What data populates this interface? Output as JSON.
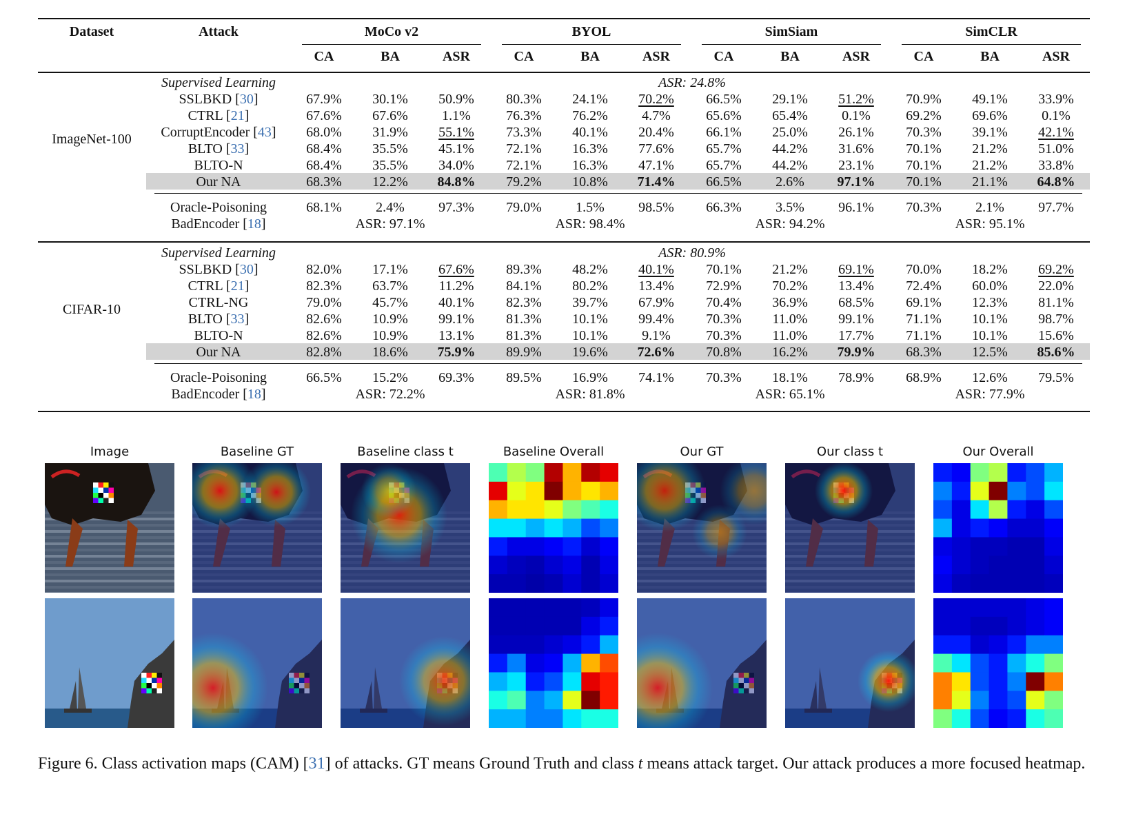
{
  "table": {
    "headers": {
      "dataset": "Dataset",
      "attack": "Attack",
      "groups": [
        "MoCo v2",
        "BYOL",
        "SimSiam",
        "SimCLR"
      ],
      "metrics": [
        "CA",
        "BA",
        "ASR"
      ]
    },
    "sections": [
      {
        "dataset": "ImageNet-100",
        "supervised": {
          "label": "Supervised Learning",
          "text": "ASR: 24.8%"
        },
        "rows": [
          {
            "name": "SSLBKD",
            "ref": "30",
            "cells": [
              "67.9%",
              "30.1%",
              "50.9%",
              "80.3%",
              "24.1%",
              "70.2%",
              "66.5%",
              "29.1%",
              "51.2%",
              "70.9%",
              "49.1%",
              "33.9%"
            ],
            "underline": [
              5,
              8
            ]
          },
          {
            "name": "CTRL",
            "ref": "21",
            "cells": [
              "67.6%",
              "67.6%",
              "1.1%",
              "76.3%",
              "76.2%",
              "4.7%",
              "65.6%",
              "65.4%",
              "0.1%",
              "69.2%",
              "69.6%",
              "0.1%"
            ]
          },
          {
            "name": "CorruptEncoder",
            "ref": "43",
            "cells": [
              "68.0%",
              "31.9%",
              "55.1%",
              "73.3%",
              "40.1%",
              "20.4%",
              "66.1%",
              "25.0%",
              "26.1%",
              "70.3%",
              "39.1%",
              "42.1%"
            ],
            "underline": [
              2,
              11
            ]
          },
          {
            "name": "BLTO",
            "ref": "33",
            "cells": [
              "68.4%",
              "35.5%",
              "45.1%",
              "72.1%",
              "16.3%",
              "77.6%",
              "65.7%",
              "44.2%",
              "31.6%",
              "70.1%",
              "21.2%",
              "51.0%"
            ]
          },
          {
            "name": "BLTO-N",
            "ref": "",
            "cells": [
              "68.4%",
              "35.5%",
              "34.0%",
              "72.1%",
              "16.3%",
              "47.1%",
              "65.7%",
              "44.2%",
              "23.1%",
              "70.1%",
              "21.2%",
              "33.8%"
            ]
          },
          {
            "name": "Our NA",
            "ref": "",
            "highlight": true,
            "cells": [
              "68.3%",
              "12.2%",
              "84.8%",
              "79.2%",
              "10.8%",
              "71.4%",
              "66.5%",
              "2.6%",
              "97.1%",
              "70.1%",
              "21.1%",
              "64.8%"
            ],
            "bold": [
              2,
              5,
              8,
              11
            ]
          }
        ],
        "oracle": {
          "name": "Oracle-Poisoning",
          "cells": [
            "68.1%",
            "2.4%",
            "97.3%",
            "79.0%",
            "1.5%",
            "98.5%",
            "66.3%",
            "3.5%",
            "96.1%",
            "70.3%",
            "2.1%",
            "97.7%"
          ]
        },
        "badencoder": {
          "name": "BadEncoder",
          "ref": "18",
          "asr": [
            "ASR: 97.1%",
            "ASR: 98.4%",
            "ASR: 94.2%",
            "ASR: 95.1%"
          ]
        }
      },
      {
        "dataset": "CIFAR-10",
        "supervised": {
          "label": "Supervised Learning",
          "text": "ASR: 80.9%"
        },
        "rows": [
          {
            "name": "SSLBKD",
            "ref": "30",
            "cells": [
              "82.0%",
              "17.1%",
              "67.6%",
              "89.3%",
              "48.2%",
              "40.1%",
              "70.1%",
              "21.2%",
              "69.1%",
              "70.0%",
              "18.2%",
              "69.2%"
            ],
            "underline": [
              2,
              5,
              8,
              11
            ]
          },
          {
            "name": "CTRL",
            "ref": "21",
            "cells": [
              "82.3%",
              "63.7%",
              "11.2%",
              "84.1%",
              "80.2%",
              "13.4%",
              "72.9%",
              "70.2%",
              "13.4%",
              "72.4%",
              "60.0%",
              "22.0%"
            ]
          },
          {
            "name": "CTRL-NG",
            "ref": "",
            "cells": [
              "79.0%",
              "45.7%",
              "40.1%",
              "82.3%",
              "39.7%",
              "67.9%",
              "70.4%",
              "36.9%",
              "68.5%",
              "69.1%",
              "12.3%",
              "81.1%"
            ]
          },
          {
            "name": "BLTO",
            "ref": "33",
            "cells": [
              "82.6%",
              "10.9%",
              "99.1%",
              "81.3%",
              "10.1%",
              "99.4%",
              "70.3%",
              "11.0%",
              "99.1%",
              "71.1%",
              "10.1%",
              "98.7%"
            ]
          },
          {
            "name": "BLTO-N",
            "ref": "",
            "cells": [
              "82.6%",
              "10.9%",
              "13.1%",
              "81.3%",
              "10.1%",
              "9.1%",
              "70.3%",
              "11.0%",
              "17.7%",
              "71.1%",
              "10.1%",
              "15.6%"
            ]
          },
          {
            "name": "Our NA",
            "ref": "",
            "highlight": true,
            "cells": [
              "82.8%",
              "18.6%",
              "75.9%",
              "89.9%",
              "19.6%",
              "72.6%",
              "70.8%",
              "16.2%",
              "79.9%",
              "68.3%",
              "12.5%",
              "85.6%"
            ],
            "bold": [
              2,
              5,
              8,
              11
            ]
          }
        ],
        "oracle": {
          "name": "Oracle-Poisoning",
          "cells": [
            "66.5%",
            "15.2%",
            "69.3%",
            "89.5%",
            "16.9%",
            "74.1%",
            "70.3%",
            "18.1%",
            "78.9%",
            "68.9%",
            "12.6%",
            "79.5%"
          ]
        },
        "badencoder": {
          "name": "BadEncoder",
          "ref": "18",
          "asr": [
            "ASR: 72.2%",
            "ASR: 81.8%",
            "ASR: 65.1%",
            "ASR: 77.9%"
          ]
        }
      }
    ]
  },
  "figure": {
    "column_titles": [
      "Image",
      "Baseline GT",
      "Baseline class t",
      "Baseline Overall",
      "Our GT",
      "Our class t",
      "Our Overall"
    ],
    "colormap": "jet",
    "grids": {
      "baseline_overall_row1": [
        [
          0.45,
          0.55,
          0.5,
          0.95,
          0.7,
          0.95,
          0.9
        ],
        [
          0.9,
          0.6,
          0.65,
          1.0,
          0.7,
          0.65,
          0.7
        ],
        [
          0.7,
          0.65,
          0.65,
          0.6,
          0.5,
          0.45,
          0.4
        ],
        [
          0.35,
          0.35,
          0.3,
          0.35,
          0.3,
          0.2,
          0.25
        ],
        [
          0.15,
          0.1,
          0.1,
          0.12,
          0.15,
          0.08,
          0.12
        ],
        [
          0.08,
          0.06,
          0.05,
          0.08,
          0.1,
          0.05,
          0.1
        ],
        [
          0.05,
          0.05,
          0.04,
          0.05,
          0.08,
          0.05,
          0.08
        ]
      ],
      "our_overall_row1": [
        [
          0.15,
          0.12,
          0.5,
          0.55,
          0.15,
          0.2,
          0.3
        ],
        [
          0.25,
          0.15,
          0.6,
          1.0,
          0.25,
          0.2,
          0.35
        ],
        [
          0.2,
          0.1,
          0.35,
          0.55,
          0.15,
          0.1,
          0.2
        ],
        [
          0.3,
          0.1,
          0.15,
          0.12,
          0.08,
          0.08,
          0.12
        ],
        [
          0.1,
          0.08,
          0.06,
          0.06,
          0.05,
          0.05,
          0.1
        ],
        [
          0.12,
          0.08,
          0.06,
          0.05,
          0.05,
          0.05,
          0.08
        ],
        [
          0.1,
          0.06,
          0.05,
          0.05,
          0.05,
          0.05,
          0.06
        ]
      ],
      "baseline_overall_row2": [
        [
          0.05,
          0.05,
          0.05,
          0.05,
          0.05,
          0.06,
          0.1
        ],
        [
          0.05,
          0.05,
          0.05,
          0.05,
          0.05,
          0.1,
          0.15
        ],
        [
          0.06,
          0.06,
          0.06,
          0.08,
          0.1,
          0.15,
          0.3
        ],
        [
          0.15,
          0.25,
          0.1,
          0.12,
          0.3,
          0.7,
          0.8
        ],
        [
          0.3,
          0.35,
          0.15,
          0.2,
          0.35,
          0.9,
          0.85
        ],
        [
          0.4,
          0.45,
          0.25,
          0.3,
          0.6,
          1.0,
          0.85
        ],
        [
          0.3,
          0.3,
          0.25,
          0.25,
          0.35,
          0.4,
          0.4
        ]
      ],
      "our_overall_row2": [
        [
          0.08,
          0.08,
          0.08,
          0.08,
          0.08,
          0.1,
          0.12
        ],
        [
          0.08,
          0.08,
          0.06,
          0.06,
          0.08,
          0.1,
          0.12
        ],
        [
          0.15,
          0.15,
          0.08,
          0.1,
          0.15,
          0.25,
          0.25
        ],
        [
          0.45,
          0.35,
          0.2,
          0.15,
          0.3,
          0.4,
          0.5
        ],
        [
          0.75,
          0.65,
          0.2,
          0.15,
          0.25,
          1.0,
          0.75
        ],
        [
          0.75,
          0.6,
          0.25,
          0.15,
          0.2,
          0.6,
          0.5
        ],
        [
          0.5,
          0.4,
          0.2,
          0.12,
          0.15,
          0.4,
          0.45
        ]
      ]
    }
  },
  "caption": {
    "prefix": "Figure 6. Class activation maps (CAM) [",
    "ref": "31",
    "middle": "] of attacks. GT means Ground Truth and class ",
    "t": "t",
    "suffix": " means attack target. Our attack produces a more focused heatmap."
  }
}
